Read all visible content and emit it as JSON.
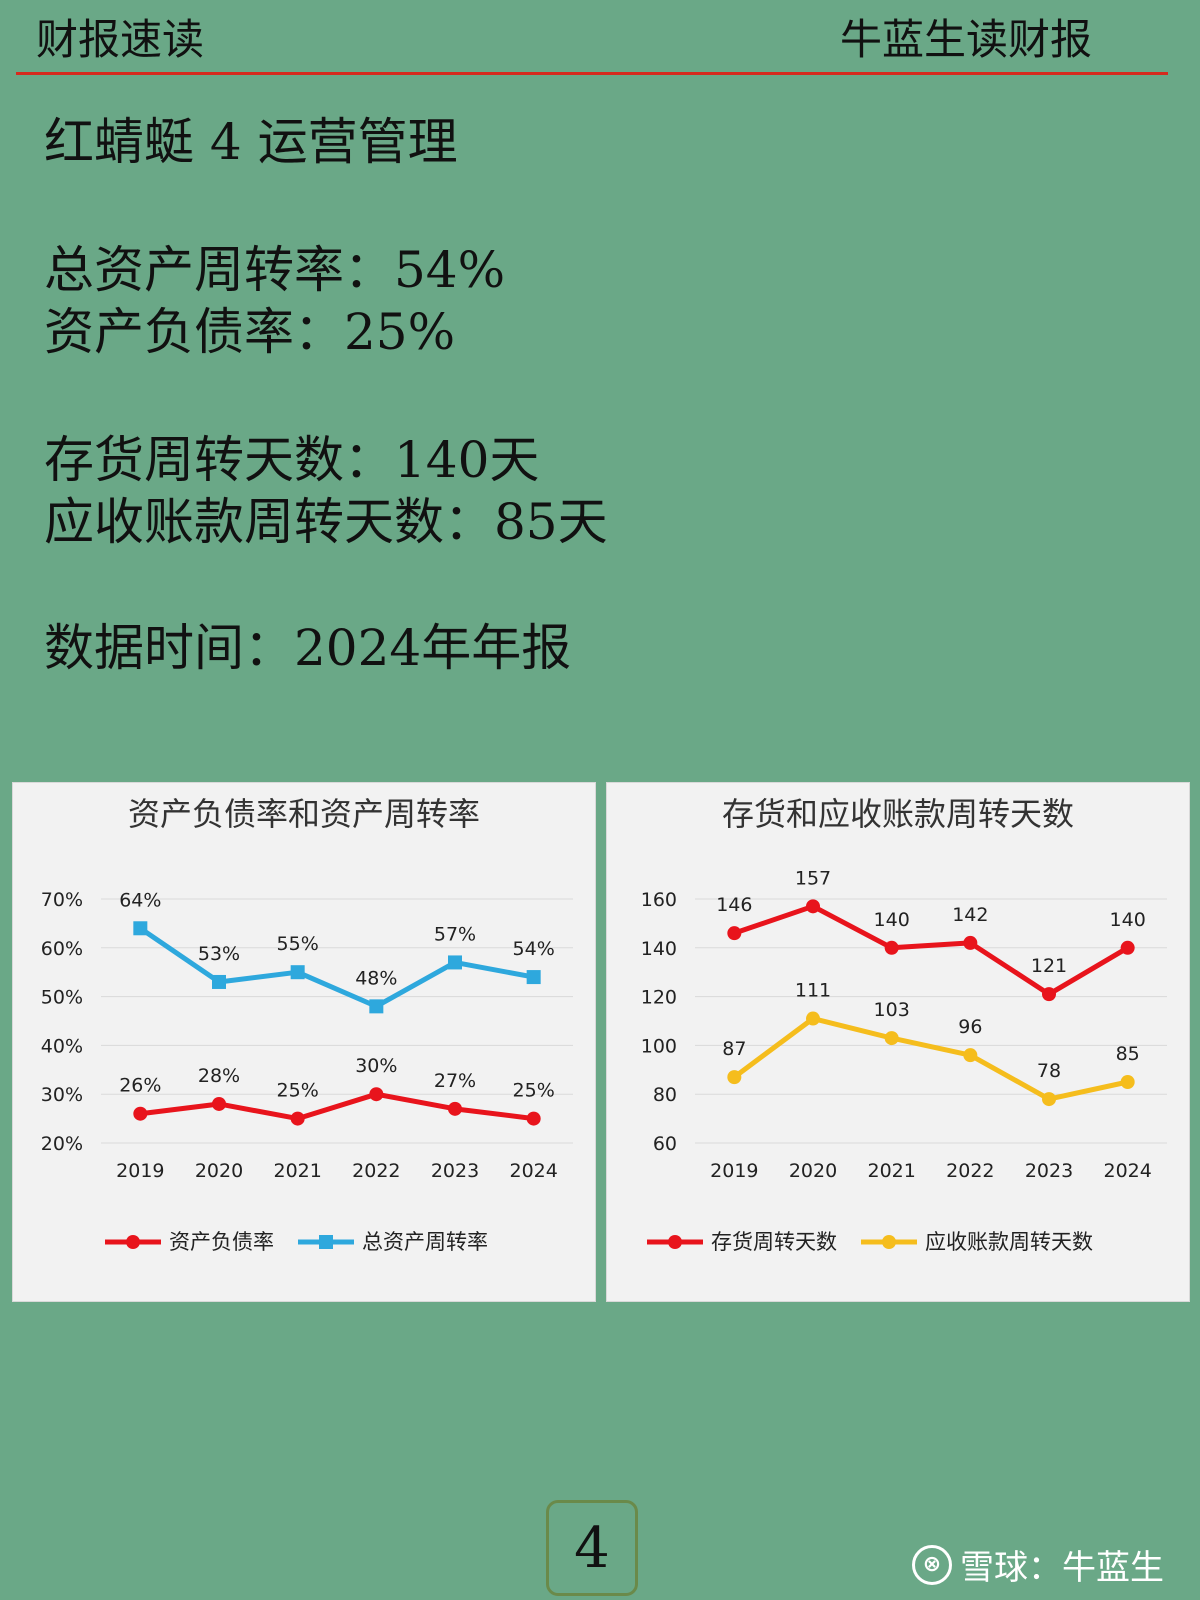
{
  "header": {
    "left": "财报速读",
    "right": "牛蓝生读财报"
  },
  "content": {
    "title": "红蜻蜓 4 运营管理",
    "total_asset_turnover": "总资产周转率：54%",
    "debt_ratio": "资产负债率：25%",
    "inventory_days": "存货周转天数：140天",
    "receivable_days": "应收账款周转天数：85天",
    "data_time": "数据时间：2024年年报"
  },
  "page_number": "4",
  "watermark": {
    "text": "雪球：牛蓝生",
    "logo_label": "⊗"
  },
  "colors": {
    "red": "#e8141c",
    "blue": "#2ea8dd",
    "yellow": "#f5bd1d",
    "background": "#6aa887",
    "panel": "#f2f2f2"
  },
  "chart_data": [
    {
      "type": "line",
      "title": "资产负债率和资产周转率",
      "categories": [
        "2019",
        "2020",
        "2021",
        "2022",
        "2023",
        "2024"
      ],
      "ylim": [
        20,
        70
      ],
      "yticks": [
        20,
        30,
        40,
        50,
        60,
        70
      ],
      "ytick_suffix": "%",
      "grid": true,
      "legend": "bottom",
      "series": [
        {
          "name": "资产负债率",
          "values": [
            26,
            28,
            25,
            30,
            27,
            25
          ],
          "labels": [
            "26%",
            "28%",
            "25%",
            "30%",
            "27%",
            "25%"
          ],
          "color": "#e8141c",
          "marker": "circle"
        },
        {
          "name": "总资产周转率",
          "values": [
            64,
            53,
            55,
            48,
            57,
            54
          ],
          "labels": [
            "64%",
            "53%",
            "55%",
            "48%",
            "57%",
            "54%"
          ],
          "color": "#2ea8dd",
          "marker": "square"
        }
      ]
    },
    {
      "type": "line",
      "title": "存货和应收账款周转天数",
      "categories": [
        "2019",
        "2020",
        "2021",
        "2022",
        "2023",
        "2024"
      ],
      "ylim": [
        60,
        160
      ],
      "yticks": [
        60,
        80,
        100,
        120,
        140,
        160
      ],
      "ytick_suffix": "",
      "grid": true,
      "legend": "bottom",
      "series": [
        {
          "name": "存货周转天数",
          "values": [
            146,
            157,
            140,
            142,
            121,
            140
          ],
          "labels": [
            "146",
            "157",
            "140",
            "142",
            "121",
            "140"
          ],
          "color": "#e8141c",
          "marker": "circle"
        },
        {
          "name": "应收账款周转天数",
          "values": [
            87,
            111,
            103,
            96,
            78,
            85
          ],
          "labels": [
            "87",
            "111",
            "103",
            "96",
            "78",
            "85"
          ],
          "color": "#f5bd1d",
          "marker": "circle"
        }
      ]
    }
  ]
}
